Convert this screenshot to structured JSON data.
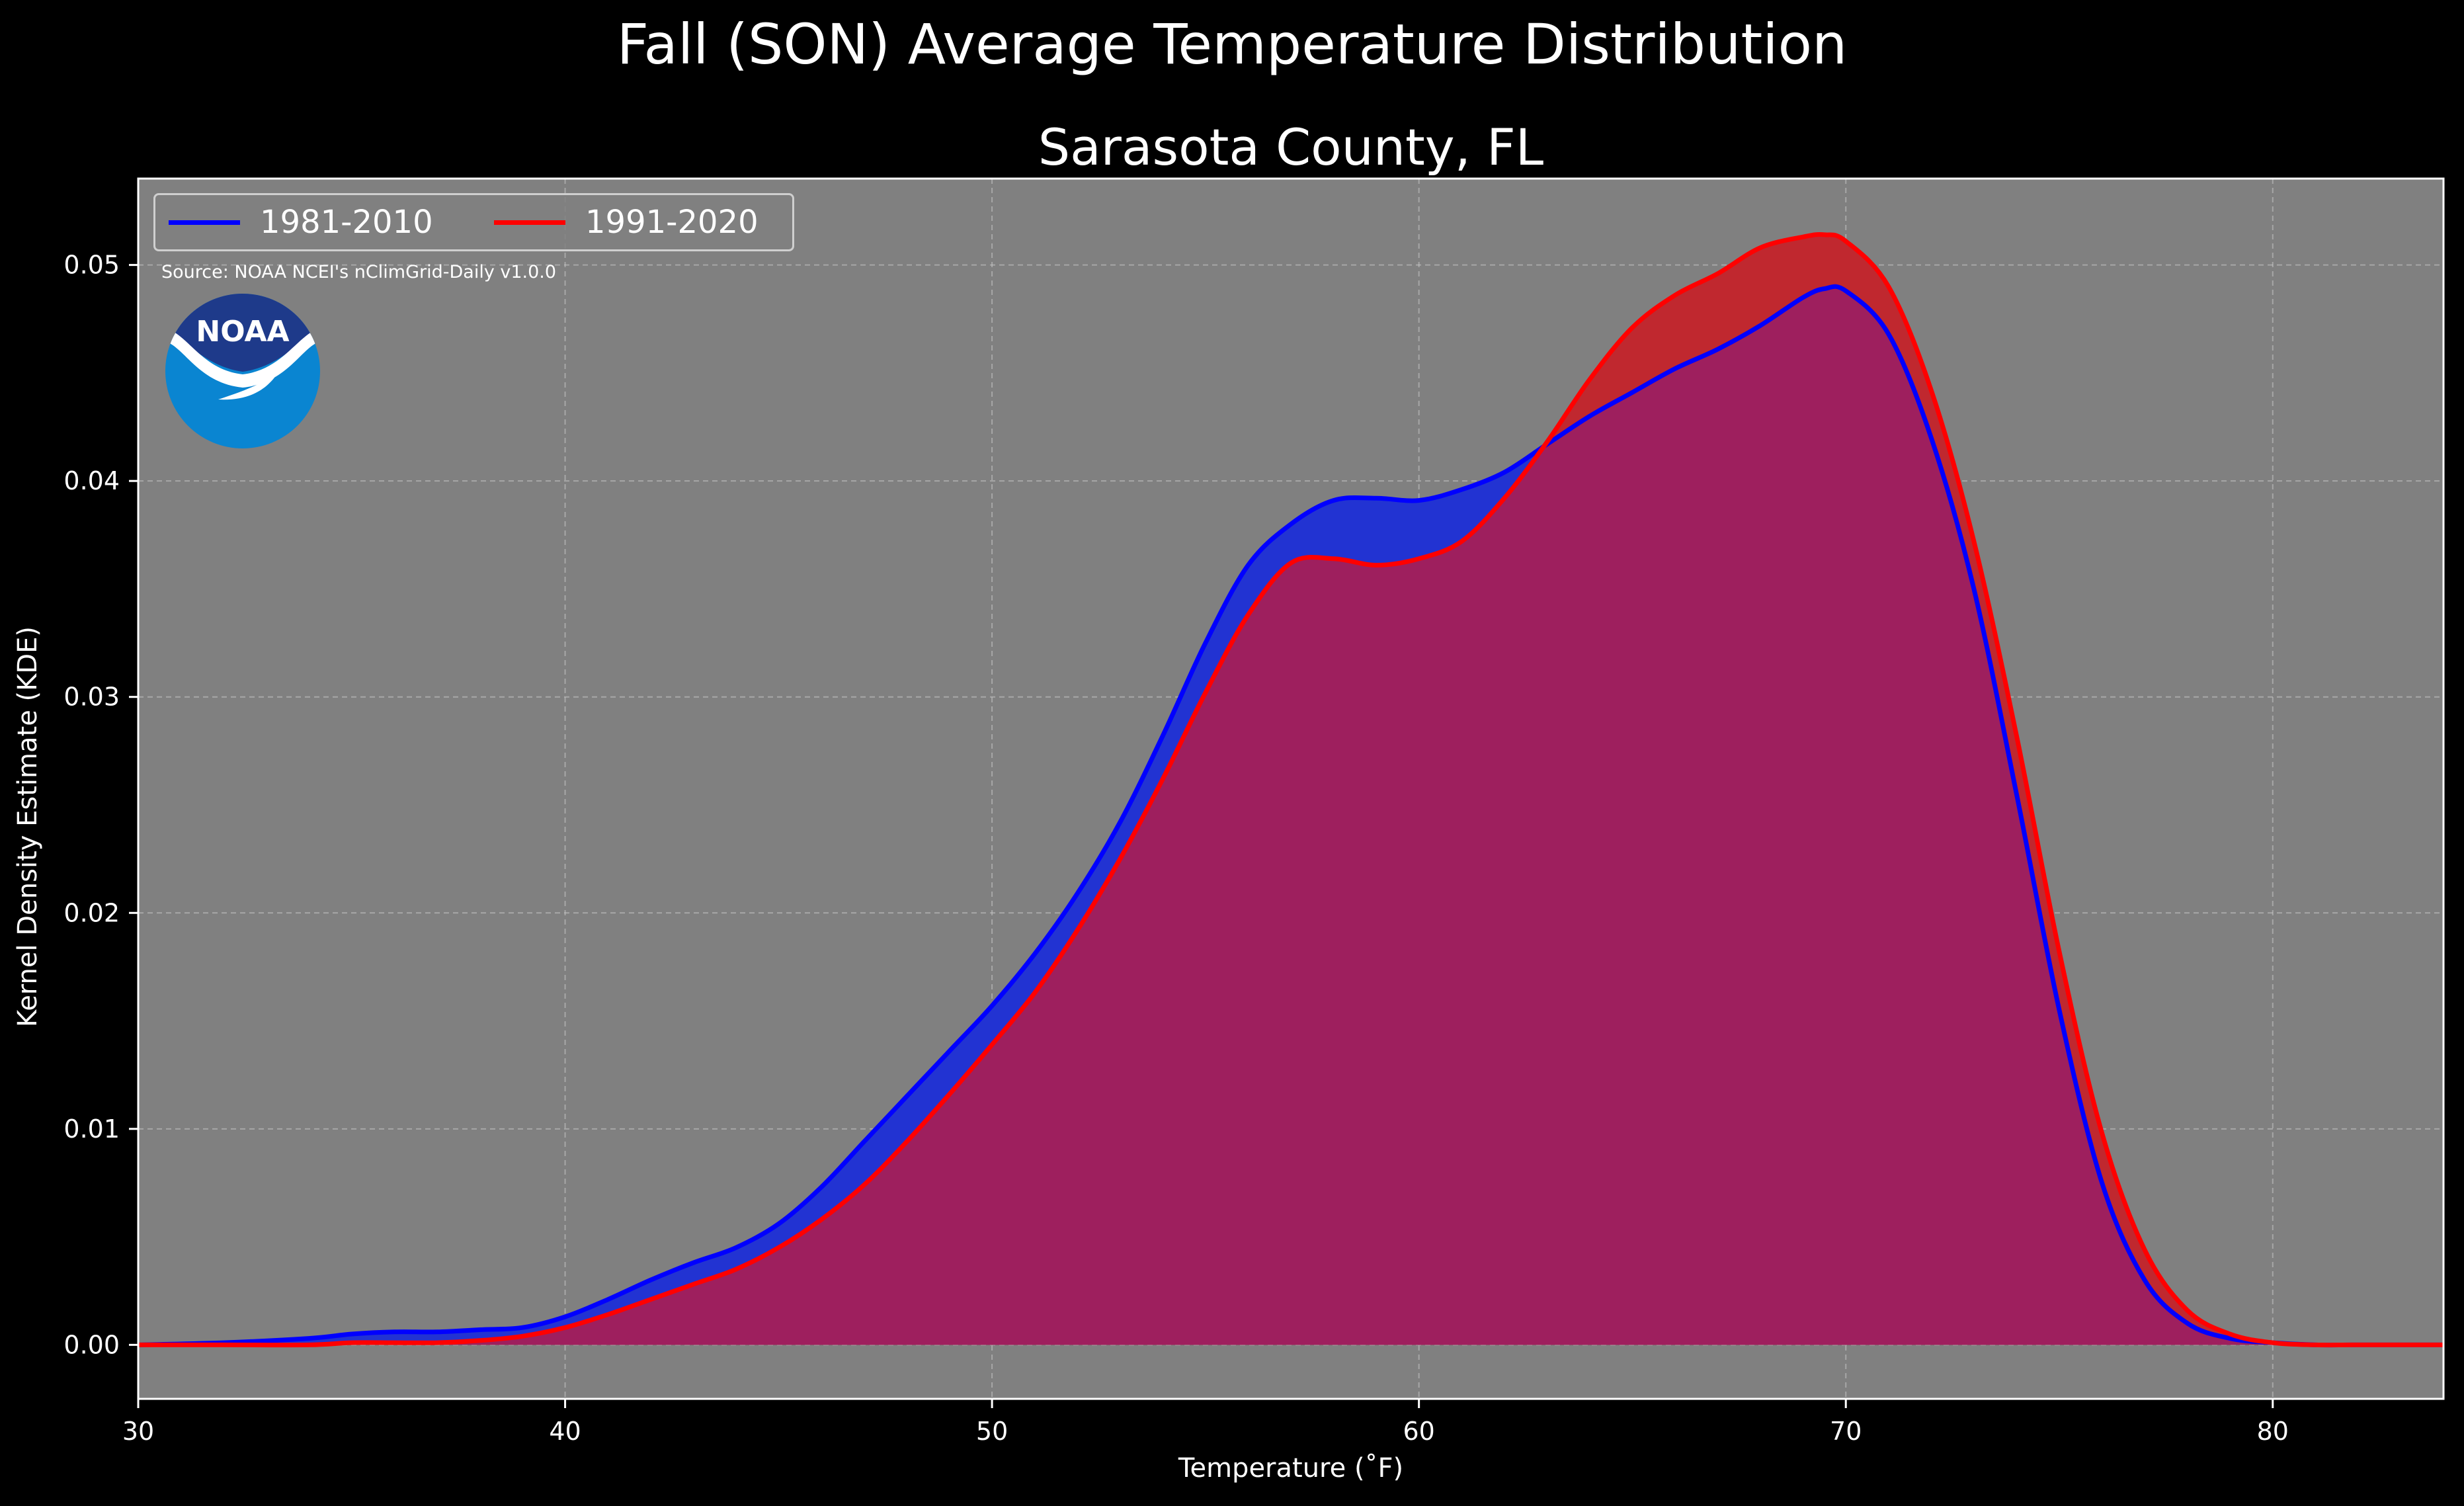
{
  "page": {
    "suptitle": "Fall (SON) Average Temperature Distribution",
    "subtitle": "Sarasota County, FL",
    "source": "Source: NOAA NCEI's nClimGrid-Daily v1.0.0",
    "logo_text": "NOAA"
  },
  "colors": {
    "background": "#000000",
    "plot_background": "#808080",
    "series_1981": "#0000ff",
    "series_1991": "#ff0000",
    "fill_1981": "#2233d2",
    "fill_1991": "#c0282f",
    "overlap": "#9e1f5e",
    "noaa_dark": "#1e3a8a",
    "noaa_light": "#0a85d1"
  },
  "chart_data": {
    "type": "area",
    "title": "Fall (SON) Average Temperature Distribution",
    "subtitle": "Sarasota County, FL",
    "xlabel": "Temperature ($^\\circ$F)",
    "xlabel_display": "Temperature (˚F)",
    "ylabel": "Kernel Density Estimate (KDE)",
    "xlim": [
      30,
      84
    ],
    "ylim": [
      -0.0025,
      0.054
    ],
    "xticks": [
      30,
      40,
      50,
      60,
      70,
      80
    ],
    "xtick_labels": [
      "30",
      "40",
      "50",
      "60",
      "70",
      "80"
    ],
    "yticks": [
      0.0,
      0.01,
      0.02,
      0.03,
      0.04,
      0.05
    ],
    "ytick_labels": [
      "0.00",
      "0.01",
      "0.02",
      "0.03",
      "0.04",
      "0.05"
    ],
    "grid": true,
    "legend_position": "top-left",
    "series": [
      {
        "name": "1981-2010",
        "color": "#0000ff",
        "x": [
          30,
          32,
          34,
          35,
          36,
          37,
          38,
          39,
          40,
          41,
          42,
          43,
          44,
          45,
          46,
          47,
          48,
          49,
          50,
          51,
          52,
          53,
          54,
          55,
          56,
          57,
          58,
          59,
          60,
          61,
          62,
          63,
          64,
          65,
          66,
          67,
          68,
          69,
          69.5,
          70,
          71,
          72,
          73,
          74,
          75,
          76,
          77,
          78,
          79,
          80,
          81,
          82,
          84
        ],
        "y": [
          0.0,
          0.0001,
          0.0003,
          0.0005,
          0.0006,
          0.0006,
          0.0007,
          0.0008,
          0.0013,
          0.0021,
          0.003,
          0.0038,
          0.0045,
          0.0056,
          0.0073,
          0.0094,
          0.0115,
          0.0136,
          0.0157,
          0.0181,
          0.0209,
          0.0242,
          0.0282,
          0.0325,
          0.0361,
          0.038,
          0.0391,
          0.0392,
          0.0391,
          0.0396,
          0.0404,
          0.0417,
          0.043,
          0.0441,
          0.0452,
          0.0461,
          0.0472,
          0.0485,
          0.0489,
          0.0488,
          0.0468,
          0.042,
          0.035,
          0.0255,
          0.0155,
          0.0075,
          0.003,
          0.001,
          0.0003,
          0.0001,
          0.0,
          0.0,
          0.0
        ]
      },
      {
        "name": "1991-2020",
        "color": "#ff0000",
        "x": [
          30,
          32,
          34,
          35,
          36,
          37,
          38,
          39,
          40,
          41,
          42,
          43,
          44,
          45,
          46,
          47,
          48,
          49,
          50,
          51,
          52,
          53,
          54,
          55,
          56,
          57,
          58,
          59,
          60,
          61,
          62,
          63,
          64,
          65,
          66,
          67,
          68,
          69,
          69.5,
          70,
          71,
          72,
          73,
          74,
          75,
          76,
          77,
          78,
          79,
          80,
          81,
          82,
          84
        ],
        "y": [
          0.0,
          0.0,
          0.0,
          0.0001,
          0.0001,
          0.0001,
          0.0002,
          0.0004,
          0.0008,
          0.0014,
          0.0021,
          0.0028,
          0.0035,
          0.0045,
          0.0058,
          0.0074,
          0.0094,
          0.0116,
          0.0139,
          0.0163,
          0.0192,
          0.0225,
          0.0262,
          0.0302,
          0.0338,
          0.0362,
          0.0364,
          0.0361,
          0.0364,
          0.0372,
          0.0392,
          0.0418,
          0.0447,
          0.0471,
          0.0486,
          0.0496,
          0.0508,
          0.0513,
          0.0514,
          0.0511,
          0.049,
          0.0442,
          0.0372,
          0.0282,
          0.0182,
          0.0098,
          0.0044,
          0.0016,
          0.0005,
          0.0001,
          0.0,
          0.0,
          0.0
        ]
      }
    ]
  }
}
